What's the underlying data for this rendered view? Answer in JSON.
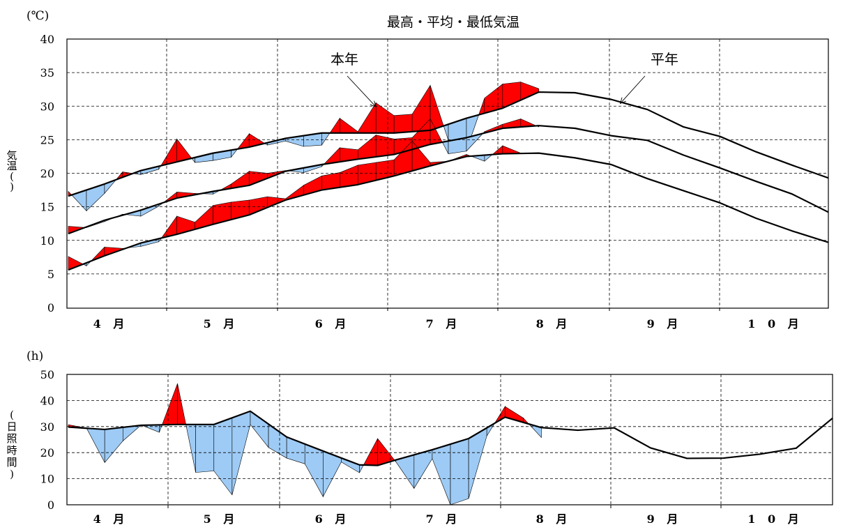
{
  "chart_data": [
    {
      "type": "line",
      "title": "最高・平均・最低気温",
      "unit": "(℃)",
      "ylabel": [
        "気",
        "温",
        "(",
        ")"
      ],
      "ylim": [
        0,
        40
      ],
      "yticks": [
        0,
        5,
        10,
        15,
        20,
        25,
        30,
        35,
        40
      ],
      "months": [
        "4月",
        "5月",
        "6月",
        "7月",
        "8月",
        "9月",
        "10月"
      ],
      "x_unit": "5-day period (半旬), 0 = 4月第1半旬",
      "x_range": [
        0,
        42
      ],
      "annotations": [
        {
          "text": "本年",
          "series": "this_year",
          "x": 17
        },
        {
          "text": "平年",
          "series": "normal",
          "x": 30.5
        }
      ],
      "fill_colors": {
        "above_normal": "#ff0000",
        "below_normal": "#9ecbf5"
      },
      "series": [
        {
          "key": "max_normal",
          "role": "normal",
          "x": [
            0,
            2,
            4,
            6,
            8,
            10,
            12,
            14,
            16,
            18,
            20,
            22,
            24,
            26,
            28,
            30,
            32,
            34,
            36,
            38,
            40,
            42
          ],
          "values": [
            16.6,
            18.4,
            20.4,
            21.7,
            23.0,
            23.9,
            25.2,
            26.0,
            26.0,
            26.0,
            26.4,
            28.2,
            29.7,
            32.1,
            32.0,
            31.0,
            29.5,
            26.9,
            25.5,
            23.2,
            21.2,
            19.3
          ]
        },
        {
          "key": "max_this_year",
          "role": "this_year",
          "x": [
            0,
            1,
            2,
            3,
            4,
            5,
            6,
            7,
            8,
            9,
            10,
            11,
            12,
            13,
            14,
            15,
            16,
            17,
            18,
            19,
            20,
            21,
            22,
            23,
            24,
            25,
            26,
            27,
            28,
            29
          ],
          "values": [
            17.3,
            14.4,
            17.0,
            20.2,
            19.8,
            20.6,
            25.1,
            21.6,
            21.9,
            22.4,
            25.9,
            24.2,
            24.8,
            24.0,
            24.2,
            28.2,
            26.2,
            30.5,
            28.6,
            28.8,
            33.1,
            24.9,
            23.4,
            31.2,
            33.3,
            33.6,
            32.6,
            null,
            null,
            null
          ]
        },
        {
          "key": "mean_normal",
          "role": "normal",
          "x": [
            0,
            2,
            4,
            6,
            8,
            10,
            12,
            14,
            16,
            18,
            20,
            22,
            24,
            26,
            28,
            30,
            32,
            34,
            36,
            38,
            40,
            42
          ],
          "values": [
            11.0,
            13.0,
            14.5,
            16.3,
            17.3,
            18.2,
            20.3,
            21.3,
            22.1,
            22.8,
            24.3,
            25.3,
            26.7,
            27.1,
            26.7,
            25.6,
            24.9,
            22.7,
            20.8,
            18.8,
            16.9,
            14.2
          ]
        },
        {
          "key": "mean_this_year",
          "role": "this_year",
          "x": [
            0,
            1,
            2,
            3,
            4,
            5,
            6,
            7,
            8,
            9,
            10,
            11,
            12,
            13,
            14,
            15,
            16,
            17,
            18,
            19,
            20,
            21,
            22,
            23,
            24,
            25,
            26
          ],
          "values": [
            12.1,
            11.9,
            12.8,
            13.9,
            13.6,
            15.1,
            17.2,
            17.0,
            16.9,
            18.4,
            20.3,
            20.0,
            20.4,
            20.1,
            21.0,
            23.8,
            23.5,
            25.7,
            25.1,
            25.3,
            28.1,
            22.9,
            23.3,
            26.2,
            27.3,
            28.1,
            26.9
          ]
        },
        {
          "key": "min_normal",
          "role": "normal",
          "x": [
            0,
            2,
            4,
            6,
            8,
            10,
            12,
            14,
            16,
            18,
            20,
            22,
            24,
            26,
            28,
            30,
            32,
            34,
            36,
            38,
            40,
            42
          ],
          "values": [
            5.6,
            7.7,
            9.6,
            10.9,
            12.4,
            13.8,
            16.0,
            17.5,
            18.3,
            19.6,
            21.1,
            22.5,
            22.9,
            23.0,
            22.3,
            21.3,
            19.2,
            17.4,
            15.6,
            13.3,
            11.4,
            9.7
          ]
        },
        {
          "key": "min_this_year",
          "role": "this_year",
          "x": [
            0,
            1,
            2,
            3,
            4,
            5,
            6,
            7,
            8,
            9,
            10,
            11,
            12,
            13,
            14,
            15,
            16,
            17,
            18,
            19,
            20,
            21,
            22,
            23,
            24,
            25,
            26
          ],
          "values": [
            7.6,
            6.2,
            9.0,
            8.8,
            9.1,
            9.8,
            13.6,
            12.7,
            15.2,
            15.7,
            16.0,
            16.5,
            16.2,
            18.2,
            19.6,
            20.1,
            21.2,
            21.6,
            22.0,
            24.8,
            21.6,
            21.8,
            22.8,
            21.8,
            24.1,
            23.0,
            null
          ]
        }
      ]
    },
    {
      "type": "line",
      "unit": "(h)",
      "ylabel": [
        "(",
        "日",
        "照",
        "時",
        "間",
        ")"
      ],
      "ylim": [
        0,
        50
      ],
      "yticks": [
        0,
        10,
        20,
        30,
        40,
        50
      ],
      "months": [
        "4月",
        "5月",
        "6月",
        "7月",
        "8月",
        "9月",
        "10月"
      ],
      "x_range": [
        0,
        42
      ],
      "fill_colors": {
        "above_normal": "#ff0000",
        "below_normal": "#9ecbf5"
      },
      "series": [
        {
          "key": "sun_normal",
          "role": "normal",
          "x": [
            0,
            2,
            4,
            6,
            8,
            10,
            12,
            14,
            16,
            17,
            18,
            20,
            22,
            24,
            26,
            28,
            30,
            32,
            34,
            36,
            38,
            40,
            42
          ],
          "values": [
            29.8,
            28.9,
            30.5,
            30.8,
            30.8,
            35.9,
            26.0,
            20.6,
            15.3,
            15.1,
            17.2,
            21.1,
            25.4,
            33.6,
            29.6,
            28.6,
            29.5,
            21.8,
            17.8,
            17.9,
            19.4,
            21.7,
            33.2
          ]
        },
        {
          "key": "sun_this_year",
          "role": "this_year",
          "x": [
            0,
            1,
            2,
            3,
            4,
            5,
            6,
            7,
            8,
            9,
            10,
            11,
            12,
            13,
            14,
            15,
            16,
            17,
            18,
            19,
            20,
            21,
            22,
            23,
            24,
            25,
            26
          ],
          "values": [
            30.7,
            29.4,
            16.2,
            24.5,
            30.6,
            27.8,
            46.5,
            12.4,
            13.0,
            3.8,
            30.8,
            22.0,
            17.9,
            15.7,
            3.1,
            16.4,
            12.3,
            25.4,
            16.5,
            6.3,
            17.7,
            0.0,
            2.4,
            26.4,
            37.7,
            33.3,
            25.8
          ]
        }
      ]
    }
  ]
}
